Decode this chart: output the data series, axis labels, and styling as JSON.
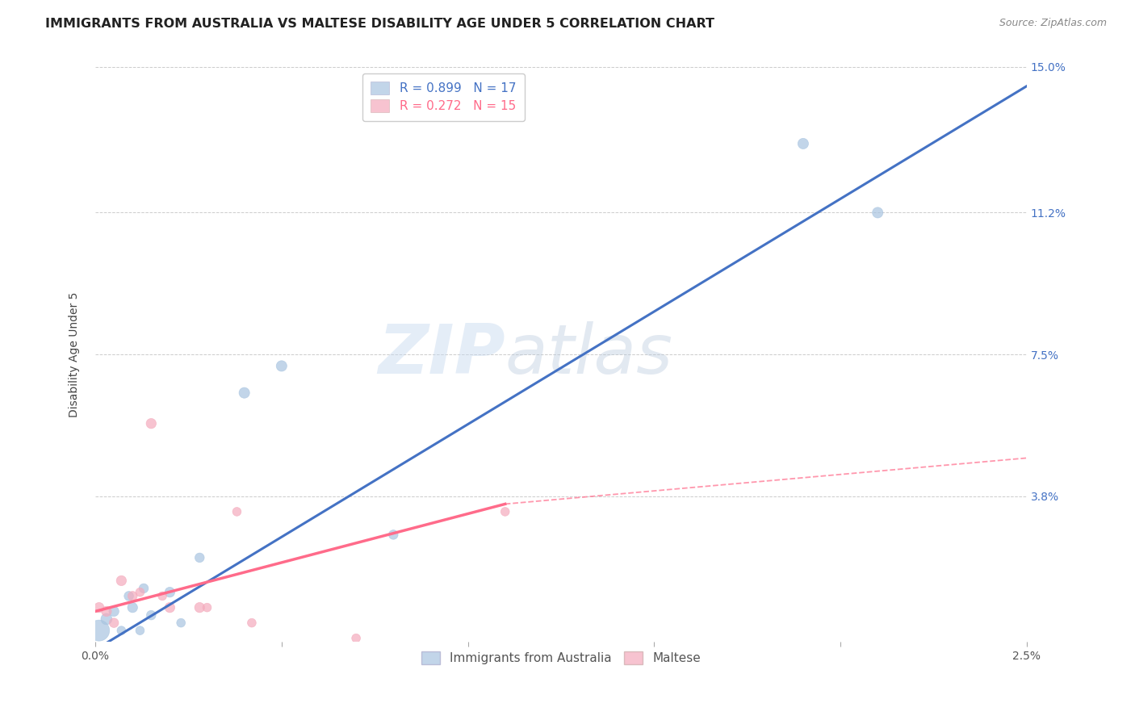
{
  "title": "IMMIGRANTS FROM AUSTRALIA VS MALTESE DISABILITY AGE UNDER 5 CORRELATION CHART",
  "source": "Source: ZipAtlas.com",
  "xlabel": "",
  "ylabel": "Disability Age Under 5",
  "xlim": [
    0.0,
    0.025
  ],
  "ylim": [
    0.0,
    0.15
  ],
  "xticks": [
    0.0,
    0.005,
    0.01,
    0.015,
    0.02,
    0.025
  ],
  "xticklabels": [
    "0.0%",
    "",
    "",
    "",
    "",
    "2.5%"
  ],
  "yticks": [
    0.0,
    0.038,
    0.075,
    0.112,
    0.15
  ],
  "yticklabels": [
    "",
    "3.8%",
    "7.5%",
    "11.2%",
    "15.0%"
  ],
  "blue_R": "R = 0.899",
  "blue_N": "N = 17",
  "pink_R": "R = 0.272",
  "pink_N": "N = 15",
  "blue_color": "#A8C4E0",
  "pink_color": "#F4AABC",
  "blue_line_color": "#4472C4",
  "pink_line_color": "#FF6B8A",
  "legend_label_blue": "Immigrants from Australia",
  "legend_label_pink": "Maltese",
  "watermark_zip": "ZIP",
  "watermark_atlas": "atlas",
  "blue_scatter_x": [
    0.0001,
    0.0003,
    0.0005,
    0.0007,
    0.0009,
    0.001,
    0.0012,
    0.0013,
    0.0015,
    0.002,
    0.0023,
    0.0028,
    0.004,
    0.005,
    0.008,
    0.019,
    0.021
  ],
  "blue_scatter_y": [
    0.003,
    0.006,
    0.008,
    0.003,
    0.012,
    0.009,
    0.003,
    0.014,
    0.007,
    0.013,
    0.005,
    0.022,
    0.065,
    0.072,
    0.028,
    0.13,
    0.112
  ],
  "blue_scatter_size": [
    350,
    100,
    80,
    60,
    70,
    80,
    60,
    70,
    70,
    80,
    60,
    70,
    90,
    90,
    70,
    90,
    90
  ],
  "pink_scatter_x": [
    0.0001,
    0.0003,
    0.0005,
    0.0007,
    0.001,
    0.0012,
    0.0015,
    0.0018,
    0.002,
    0.0028,
    0.003,
    0.0038,
    0.0042,
    0.007,
    0.011
  ],
  "pink_scatter_y": [
    0.009,
    0.008,
    0.005,
    0.016,
    0.012,
    0.013,
    0.057,
    0.012,
    0.009,
    0.009,
    0.009,
    0.034,
    0.005,
    0.001,
    0.034
  ],
  "pink_scatter_size": [
    80,
    80,
    70,
    80,
    70,
    60,
    80,
    60,
    80,
    80,
    60,
    60,
    60,
    60,
    60
  ],
  "blue_trend_x0": 0.0,
  "blue_trend_y0": -0.002,
  "blue_trend_x1": 0.025,
  "blue_trend_y1": 0.145,
  "pink_trend_solid_x0": 0.0,
  "pink_trend_solid_y0": 0.008,
  "pink_trend_solid_x1": 0.011,
  "pink_trend_solid_y1": 0.036,
  "pink_trend_dash_x0": 0.011,
  "pink_trend_dash_y0": 0.036,
  "pink_trend_dash_x1": 0.025,
  "pink_trend_dash_y1": 0.048,
  "grid_color": "#CCCCCC",
  "background_color": "#FFFFFF",
  "title_fontsize": 11.5,
  "axis_label_fontsize": 10,
  "tick_fontsize": 10,
  "legend_fontsize": 11
}
